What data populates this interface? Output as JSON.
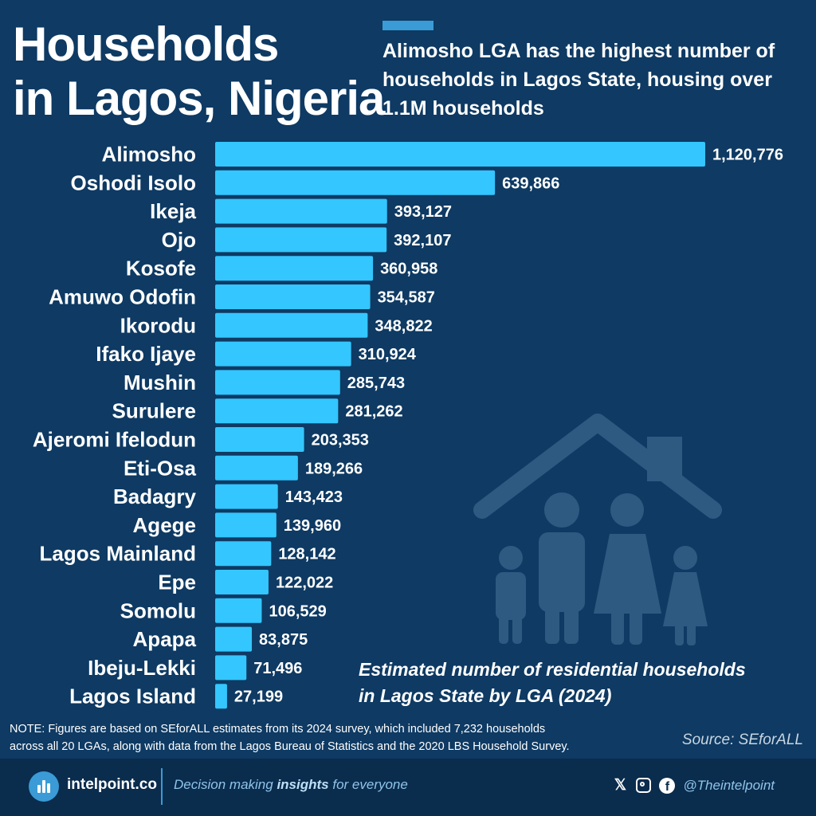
{
  "title_line1": "Households",
  "title_line2": "in Lagos, Nigeria",
  "headline": "Alimosho LGA has the highest number of households in Lagos State, housing over 1.1M households",
  "caption_line1": "Estimated number of residential households",
  "caption_line2": "in Lagos State by LGA (2024)",
  "note_line1": "NOTE: Figures are based on SEforALL estimates from its 2024 survey, which included 7,232 households",
  "note_line2": "across all 20 LGAs, along with data from the Lagos Bureau of Statistics and the 2020 LBS Household Survey.",
  "source": "Source: SEforALL",
  "footer": {
    "brand": "intelpoint.co",
    "tagline_pre": "Decision making ",
    "tagline_bold": "insights",
    "tagline_post": " for everyone",
    "handle": "@Theintelpoint"
  },
  "colors": {
    "background": "#0e3a63",
    "bar": "#33c6ff",
    "accent": "#3a9bd6",
    "footer": "#0a2c4d"
  },
  "chart_data": {
    "type": "bar",
    "orientation": "horizontal",
    "categories": [
      "Alimosho",
      "Oshodi Isolo",
      "Ikeja",
      "Ojo",
      "Kosofe",
      "Amuwo Odofin",
      "Ikorodu",
      "Ifako Ijaye",
      "Mushin",
      "Surulere",
      "Ajeromi Ifelodun",
      "Eti-Osa",
      "Badagry",
      "Agege",
      "Lagos Mainland",
      "Epe",
      "Somolu",
      "Apapa",
      "Ibeju-Lekki",
      "Lagos Island"
    ],
    "values": [
      1120776,
      639866,
      393127,
      392107,
      360958,
      354587,
      348822,
      310924,
      285743,
      281262,
      203353,
      189266,
      143423,
      139960,
      128142,
      122022,
      106529,
      83875,
      71496,
      27199
    ],
    "value_labels": [
      "1,120,776",
      "639,866",
      "393,127",
      "392,107",
      "360,958",
      "354,587",
      "348,822",
      "310,924",
      "285,743",
      "281,262",
      "203,353",
      "189,266",
      "143,423",
      "139,960",
      "128,142",
      "122,022",
      "106,529",
      "83,875",
      "71,496",
      "27,199"
    ],
    "grid": false
  }
}
